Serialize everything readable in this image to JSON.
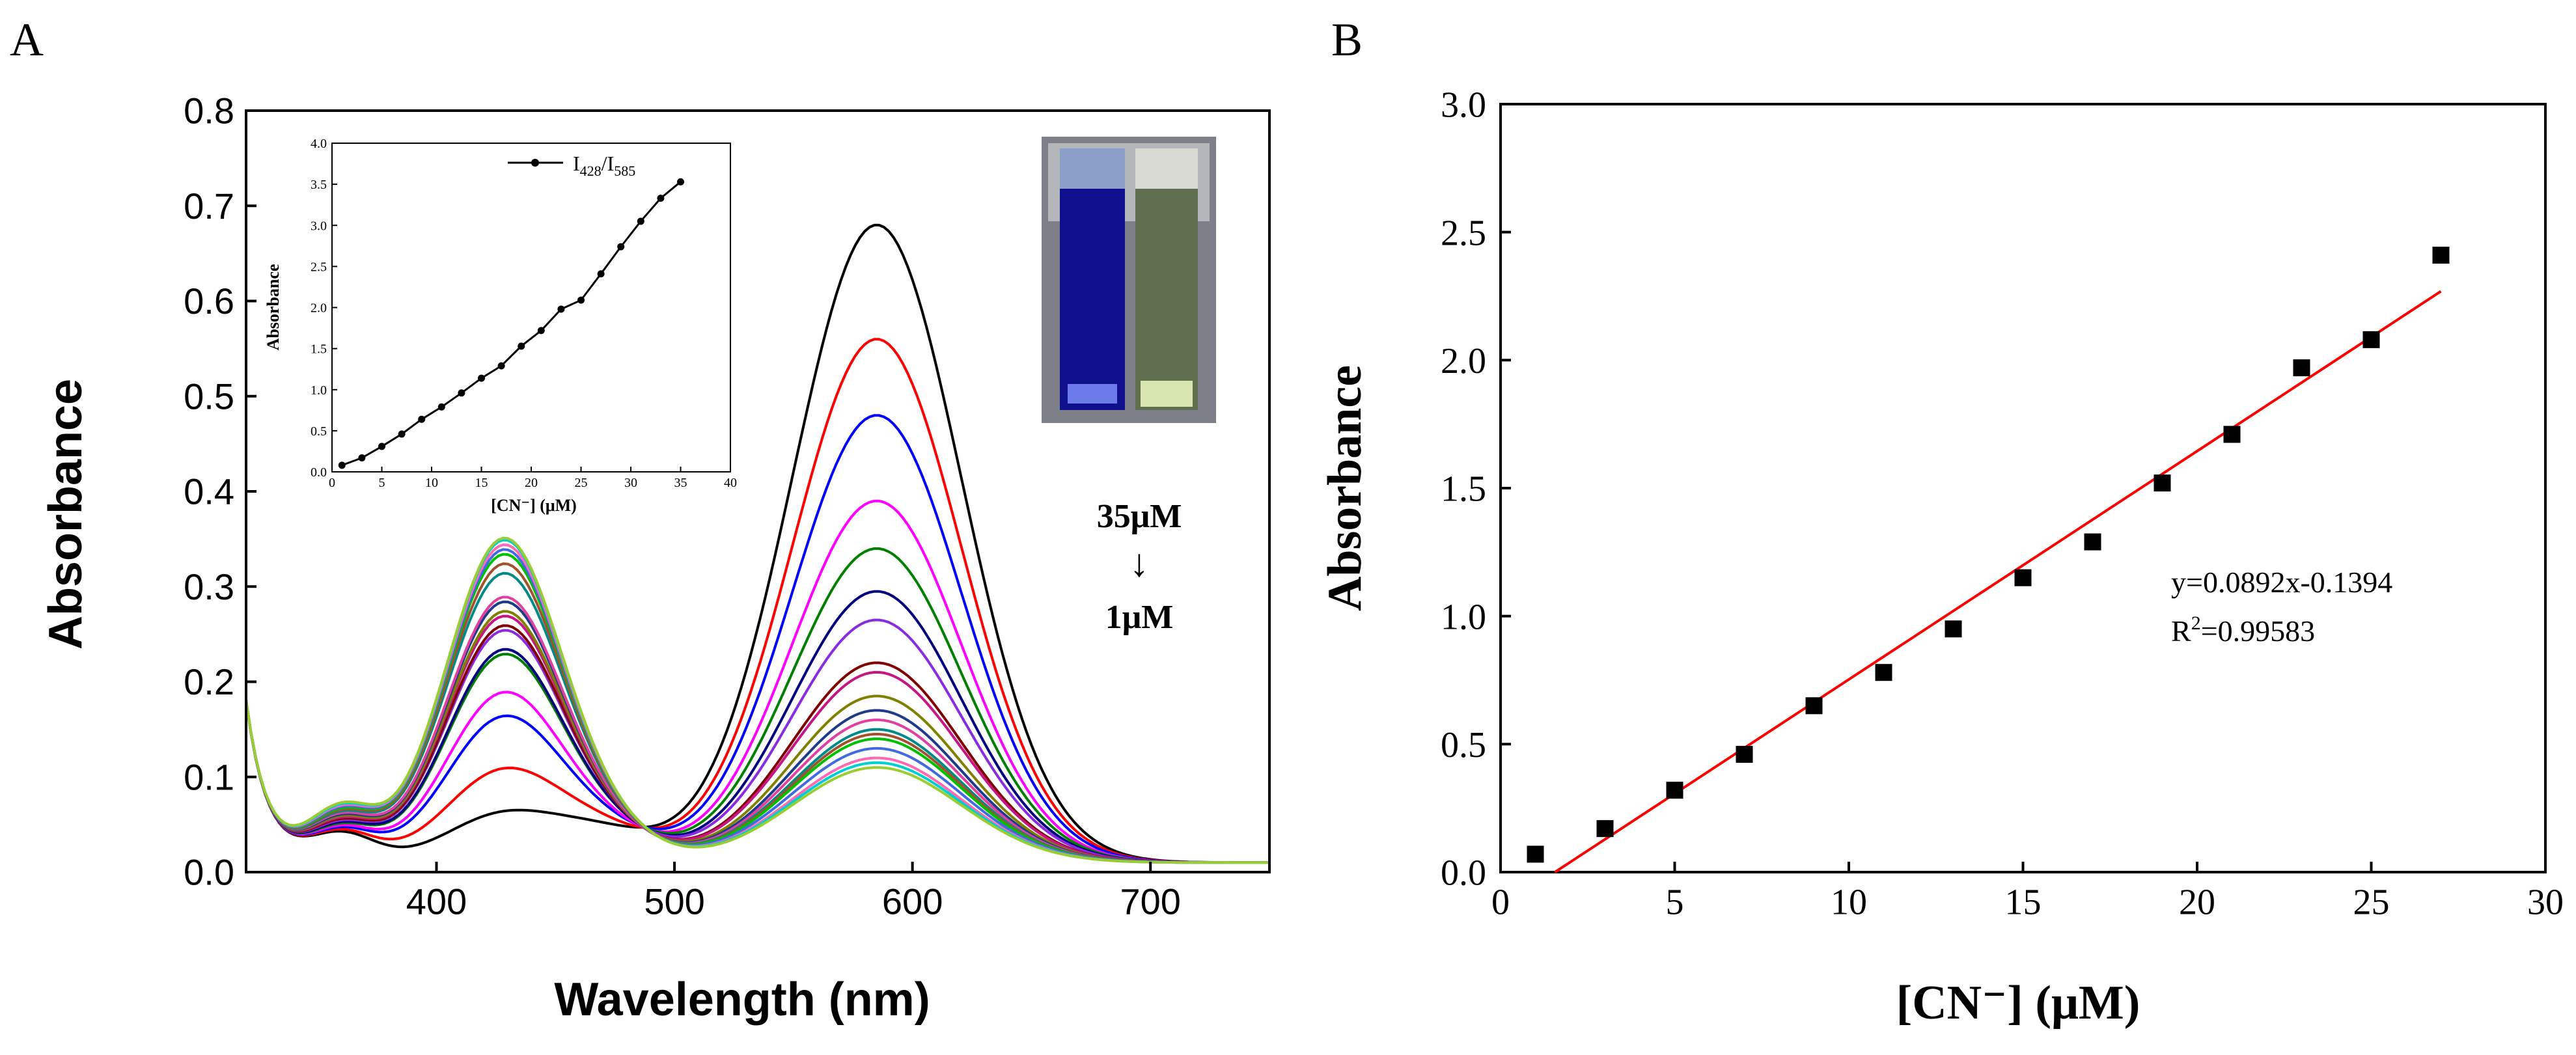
{
  "chart_data": [
    {
      "panel_label": "A",
      "type": "line",
      "xlabel": "Wavelength (nm)",
      "ylabel": "Absorbance",
      "xlim": [
        320,
        750
      ],
      "ylim": [
        0,
        0.8
      ],
      "xticks": [
        400,
        500,
        600,
        700
      ],
      "yticks": [
        0.0,
        0.1,
        0.2,
        0.3,
        0.4,
        0.5,
        0.6,
        0.7,
        0.8
      ],
      "ytick_labels": [
        "0.0",
        "0.1",
        "0.2",
        "0.3",
        "0.4",
        "0.5",
        "0.6",
        "0.7",
        "0.8"
      ],
      "annotation_top": "35μM",
      "annotation_arrow": "↓",
      "annotation_bottom": "1μM",
      "series": [
        {
          "color": "#000000",
          "peak428": 0.05,
          "peak585": 0.67
        },
        {
          "color": "#ff0000",
          "peak428": 0.095,
          "peak585": 0.55
        },
        {
          "color": "#0000ff",
          "peak428": 0.15,
          "peak585": 0.47
        },
        {
          "color": "#ff00ff",
          "peak428": 0.175,
          "peak585": 0.38
        },
        {
          "color": "#008000",
          "peak428": 0.215,
          "peak585": 0.33
        },
        {
          "color": "#000080",
          "peak428": 0.22,
          "peak585": 0.285
        },
        {
          "color": "#8a2be2",
          "peak428": 0.24,
          "peak585": 0.255
        },
        {
          "color": "#800000",
          "peak428": 0.245,
          "peak585": 0.21
        },
        {
          "color": "#c71585",
          "peak428": 0.255,
          "peak585": 0.2
        },
        {
          "color": "#808000",
          "peak428": 0.26,
          "peak585": 0.175
        },
        {
          "color": "#1e3a8a",
          "peak428": 0.27,
          "peak585": 0.16
        },
        {
          "color": "#e040a0",
          "peak428": 0.275,
          "peak585": 0.15
        },
        {
          "color": "#008b8b",
          "peak428": 0.3,
          "peak585": 0.14
        },
        {
          "color": "#a0522d",
          "peak428": 0.31,
          "peak585": 0.135
        },
        {
          "color": "#00c000",
          "peak428": 0.32,
          "peak585": 0.13
        },
        {
          "color": "#4169e1",
          "peak428": 0.325,
          "peak585": 0.12
        },
        {
          "color": "#ff69b4",
          "peak428": 0.33,
          "peak585": 0.11
        },
        {
          "color": "#00ced1",
          "peak428": 0.335,
          "peak585": 0.105
        },
        {
          "color": "#9acd32",
          "peak428": 0.337,
          "peak585": 0.1
        }
      ],
      "inset": {
        "type": "line",
        "xlabel": "[CN⁻] (μM)",
        "ylabel": "Absorbance",
        "legend": "I428/I585",
        "xlim": [
          0,
          40
        ],
        "ylim": [
          0,
          4.0
        ],
        "xticks": [
          0,
          5,
          10,
          15,
          20,
          25,
          30,
          35,
          40
        ],
        "yticks": [
          0.0,
          0.5,
          1.0,
          1.5,
          2.0,
          2.5,
          3.0,
          3.5,
          4.0
        ],
        "ytick_labels": [
          "0.0",
          "0.5",
          "1.0",
          "1.5",
          "2.0",
          "2.5",
          "3.0",
          "3.5",
          "4.0"
        ],
        "x": [
          1,
          3,
          5,
          7,
          9,
          11,
          13,
          15,
          17,
          19,
          21,
          23,
          25,
          27,
          29,
          31,
          33,
          35
        ],
        "y": [
          0.08,
          0.17,
          0.31,
          0.46,
          0.64,
          0.79,
          0.96,
          1.14,
          1.29,
          1.53,
          1.72,
          1.98,
          2.09,
          2.41,
          2.74,
          3.05,
          3.33,
          3.53
        ]
      }
    },
    {
      "panel_label": "B",
      "type": "scatter",
      "xlabel": "[CN⁻] (μM)",
      "ylabel": "Absorbance",
      "xlim": [
        0,
        30
      ],
      "ylim": [
        0,
        3.0
      ],
      "xticks": [
        0,
        5,
        10,
        15,
        20,
        25,
        30
      ],
      "yticks": [
        0.0,
        0.5,
        1.0,
        1.5,
        2.0,
        2.5,
        3.0
      ],
      "ytick_labels": [
        "0.0",
        "0.5",
        "1.0",
        "1.5",
        "2.0",
        "2.5",
        "3.0"
      ],
      "x": [
        1,
        3,
        5,
        7,
        9,
        11,
        13,
        15,
        17,
        19,
        21,
        23,
        25,
        27
      ],
      "y": [
        0.07,
        0.17,
        0.32,
        0.46,
        0.65,
        0.78,
        0.95,
        1.15,
        1.29,
        1.52,
        1.71,
        1.97,
        2.08,
        2.41
      ],
      "fit": {
        "slope": 0.0892,
        "intercept": -0.1394,
        "x_range": [
          1.56,
          27
        ],
        "color": "#ff0000"
      },
      "equation_text": "y=0.0892x-0.1394",
      "r2_prefix": "R",
      "r2_sup": "2",
      "r2_value": "=0.99583"
    }
  ]
}
